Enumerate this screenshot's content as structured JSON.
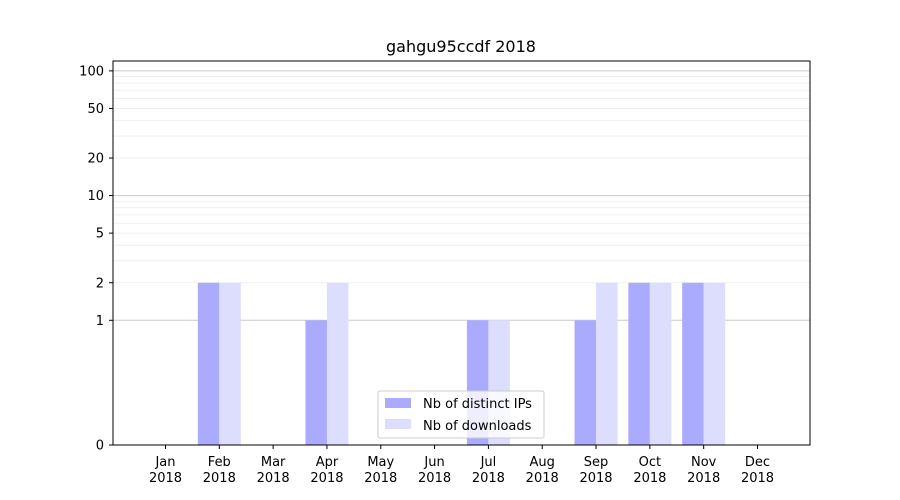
{
  "chart_data": {
    "type": "bar",
    "title": "gahgu95ccdf 2018",
    "xlabel": "",
    "ylabel": "",
    "yscale": "symlog",
    "ylim": [
      0,
      120
    ],
    "yticks": [
      0,
      1,
      2,
      5,
      10,
      20,
      50,
      100
    ],
    "grid": true,
    "legend_position": "bottom-center",
    "categories": [
      "Jan\n2018",
      "Feb\n2018",
      "Mar\n2018",
      "Apr\n2018",
      "May\n2018",
      "Jun\n2018",
      "Jul\n2018",
      "Aug\n2018",
      "Sep\n2018",
      "Oct\n2018",
      "Nov\n2018",
      "Dec\n2018"
    ],
    "series": [
      {
        "name": "Nb of distinct IPs",
        "color": "#aaaaff",
        "values": [
          0,
          2,
          0,
          1,
          0,
          0,
          1,
          0,
          1,
          2,
          2,
          0
        ]
      },
      {
        "name": "Nb of downloads",
        "color": "#ddddfe",
        "values": [
          0,
          2,
          0,
          2,
          0,
          0,
          1,
          0,
          2,
          2,
          2,
          0
        ]
      }
    ]
  }
}
